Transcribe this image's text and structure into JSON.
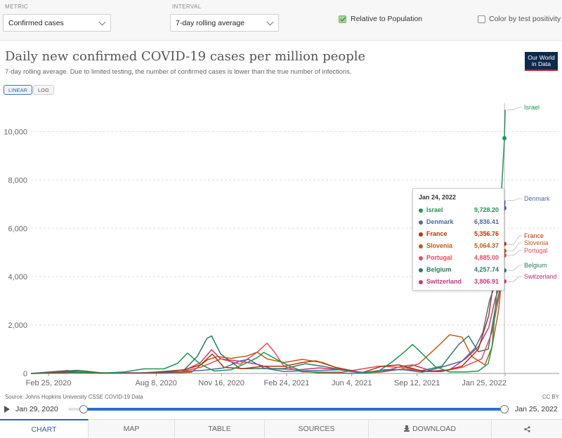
{
  "controls": {
    "metric_label": "METRIC",
    "metric_value": "Confirmed cases",
    "interval_label": "INTERVAL",
    "interval_value": "7-day rolling average",
    "relative_label": "Relative to Population",
    "relative_checked": true,
    "color_test_label": "Color by test positivity",
    "color_test_checked": false
  },
  "header": {
    "title": "Daily new confirmed COVID-19 cases per million people",
    "subtitle": "7-day rolling average. Due to limited testing, the number of confirmed cases is lower than the true number of infections.",
    "logo_line1": "Our World",
    "logo_line2": "in Data"
  },
  "scale_buttons": {
    "linear": "LINEAR",
    "log": "LOG",
    "active": "linear"
  },
  "chart_data": {
    "type": "line",
    "title": "Daily new confirmed COVID-19 cases per million people",
    "subtitle": "7-day rolling average. Due to limited testing, the number of confirmed cases is lower than the true number of infections.",
    "x_start": "2020-01-29",
    "x_end": "2022-01-25",
    "x_tick_labels": [
      "Feb 25, 2020",
      "Aug 8, 2020",
      "Nov 16, 2020",
      "Feb 24, 2021",
      "Jun 4, 2021",
      "Sep 12, 2021",
      "Jan 25, 2022"
    ],
    "x_tick_dates": [
      "2020-02-25",
      "2020-08-08",
      "2020-11-16",
      "2021-02-24",
      "2021-06-04",
      "2021-09-12",
      "2022-01-25"
    ],
    "y_ticks": [
      0,
      2000,
      4000,
      6000,
      8000,
      10000
    ],
    "y_tick_labels": [
      "0",
      "2,000",
      "4,000",
      "6,000",
      "8,000",
      "10,000"
    ],
    "ylim": [
      0,
      11000
    ],
    "grid": "horizontal dashed",
    "series": [
      {
        "name": "Israel",
        "color": "#1a9850",
        "end_value": 10900,
        "points": [
          [
            "2020-01-29",
            0
          ],
          [
            "2020-03-25",
            10
          ],
          [
            "2020-04-05",
            60
          ],
          [
            "2020-05-15",
            5
          ],
          [
            "2020-06-20",
            60
          ],
          [
            "2020-07-20",
            190
          ],
          [
            "2020-08-20",
            190
          ],
          [
            "2020-09-10",
            420
          ],
          [
            "2020-09-25",
            840
          ],
          [
            "2020-10-15",
            380
          ],
          [
            "2020-11-05",
            100
          ],
          [
            "2020-12-01",
            150
          ],
          [
            "2020-12-20",
            380
          ],
          [
            "2021-01-10",
            650
          ],
          [
            "2021-01-20",
            870
          ],
          [
            "2021-02-10",
            560
          ],
          [
            "2021-03-01",
            300
          ],
          [
            "2021-03-20",
            100
          ],
          [
            "2021-04-15",
            20
          ],
          [
            "2021-06-01",
            2
          ],
          [
            "2021-06-25",
            10
          ],
          [
            "2021-07-15",
            90
          ],
          [
            "2021-08-05",
            480
          ],
          [
            "2021-08-25",
            920
          ],
          [
            "2021-09-05",
            1200
          ],
          [
            "2021-09-15",
            950
          ],
          [
            "2021-10-10",
            280
          ],
          [
            "2021-11-01",
            60
          ],
          [
            "2021-11-25",
            60
          ],
          [
            "2021-12-15",
            100
          ],
          [
            "2021-12-30",
            400
          ],
          [
            "2022-01-05",
            1100
          ],
          [
            "2022-01-12",
            3300
          ],
          [
            "2022-01-18",
            6800
          ],
          [
            "2022-01-24",
            9728.2
          ],
          [
            "2022-01-25",
            10900
          ]
        ]
      },
      {
        "name": "Denmark",
        "color": "#4c6a9c",
        "end_value": 7150,
        "points": [
          [
            "2020-01-29",
            0
          ],
          [
            "2020-03-20",
            20
          ],
          [
            "2020-04-10",
            40
          ],
          [
            "2020-05-01",
            20
          ],
          [
            "2020-06-15",
            5
          ],
          [
            "2020-08-15",
            20
          ],
          [
            "2020-09-20",
            80
          ],
          [
            "2020-10-20",
            130
          ],
          [
            "2020-11-20",
            230
          ],
          [
            "2020-12-15",
            520
          ],
          [
            "2020-12-28",
            580
          ],
          [
            "2021-01-20",
            220
          ],
          [
            "2021-02-20",
            80
          ],
          [
            "2021-03-20",
            110
          ],
          [
            "2021-04-20",
            130
          ],
          [
            "2021-05-15",
            150
          ],
          [
            "2021-06-20",
            20
          ],
          [
            "2021-07-20",
            120
          ],
          [
            "2021-08-20",
            160
          ],
          [
            "2021-09-20",
            50
          ],
          [
            "2021-10-20",
            260
          ],
          [
            "2021-11-20",
            510
          ],
          [
            "2021-12-10",
            1050
          ],
          [
            "2021-12-22",
            1700
          ],
          [
            "2022-01-01",
            3000
          ],
          [
            "2022-01-10",
            3700
          ],
          [
            "2022-01-18",
            5200
          ],
          [
            "2022-01-24",
            6836.41
          ],
          [
            "2022-01-25",
            7150
          ]
        ]
      },
      {
        "name": "France",
        "color": "#b13507",
        "end_value": 5330,
        "points": [
          [
            "2020-01-29",
            0
          ],
          [
            "2020-03-25",
            60
          ],
          [
            "2020-04-05",
            80
          ],
          [
            "2020-05-15",
            15
          ],
          [
            "2020-07-15",
            15
          ],
          [
            "2020-08-25",
            70
          ],
          [
            "2020-09-20",
            150
          ],
          [
            "2020-10-15",
            350
          ],
          [
            "2020-11-02",
            800
          ],
          [
            "2020-11-20",
            250
          ],
          [
            "2020-12-20",
            200
          ],
          [
            "2021-01-20",
            300
          ],
          [
            "2021-02-20",
            300
          ],
          [
            "2021-03-20",
            450
          ],
          [
            "2021-04-10",
            520
          ],
          [
            "2021-05-10",
            250
          ],
          [
            "2021-06-20",
            30
          ],
          [
            "2021-07-20",
            300
          ],
          [
            "2021-08-15",
            350
          ],
          [
            "2021-09-20",
            100
          ],
          [
            "2021-10-20",
            80
          ],
          [
            "2021-11-20",
            300
          ],
          [
            "2021-12-15",
            1000
          ],
          [
            "2021-12-31",
            2400
          ],
          [
            "2022-01-10",
            4300
          ],
          [
            "2022-01-18",
            5000
          ],
          [
            "2022-01-24",
            5356.76
          ],
          [
            "2022-01-25",
            5330
          ]
        ]
      },
      {
        "name": "Slovenia",
        "color": "#c15a17",
        "end_value": 5080,
        "points": [
          [
            "2020-01-29",
            0
          ],
          [
            "2020-03-25",
            30
          ],
          [
            "2020-05-15",
            2
          ],
          [
            "2020-08-15",
            10
          ],
          [
            "2020-10-01",
            50
          ],
          [
            "2020-10-25",
            550
          ],
          [
            "2020-11-10",
            700
          ],
          [
            "2020-12-01",
            620
          ],
          [
            "2020-12-25",
            720
          ],
          [
            "2021-01-10",
            880
          ],
          [
            "2021-01-25",
            600
          ],
          [
            "2021-02-20",
            450
          ],
          [
            "2021-03-20",
            580
          ],
          [
            "2021-04-20",
            450
          ],
          [
            "2021-05-20",
            150
          ],
          [
            "2021-06-20",
            20
          ],
          [
            "2021-07-20",
            60
          ],
          [
            "2021-08-20",
            180
          ],
          [
            "2021-09-15",
            400
          ],
          [
            "2021-10-15",
            1150
          ],
          [
            "2021-11-01",
            1600
          ],
          [
            "2021-11-20",
            1500
          ],
          [
            "2021-12-05",
            700
          ],
          [
            "2021-12-25",
            350
          ],
          [
            "2022-01-05",
            1100
          ],
          [
            "2022-01-15",
            2600
          ],
          [
            "2022-01-24",
            5064.37
          ],
          [
            "2022-01-25",
            5080
          ]
        ]
      },
      {
        "name": "Portugal",
        "color": "#e44a5a",
        "end_value": 4880,
        "points": [
          [
            "2020-01-29",
            0
          ],
          [
            "2020-03-30",
            60
          ],
          [
            "2020-05-15",
            30
          ],
          [
            "2020-07-15",
            30
          ],
          [
            "2020-09-15",
            70
          ],
          [
            "2020-10-15",
            250
          ],
          [
            "2020-11-15",
            600
          ],
          [
            "2020-12-15",
            380
          ],
          [
            "2021-01-10",
            880
          ],
          [
            "2021-01-25",
            1250
          ],
          [
            "2021-02-05",
            900
          ],
          [
            "2021-02-20",
            300
          ],
          [
            "2021-03-20",
            60
          ],
          [
            "2021-05-20",
            50
          ],
          [
            "2021-07-15",
            300
          ],
          [
            "2021-08-20",
            250
          ],
          [
            "2021-09-20",
            80
          ],
          [
            "2021-10-20",
            80
          ],
          [
            "2021-11-20",
            250
          ],
          [
            "2021-12-20",
            600
          ],
          [
            "2022-01-05",
            1700
          ],
          [
            "2022-01-15",
            3100
          ],
          [
            "2022-01-24",
            4885
          ],
          [
            "2022-01-25",
            4880
          ]
        ]
      },
      {
        "name": "Belgium",
        "color": "#2a7c61",
        "end_value": 4260,
        "points": [
          [
            "2020-01-29",
            0
          ],
          [
            "2020-04-10",
            130
          ],
          [
            "2020-05-15",
            30
          ],
          [
            "2020-07-15",
            20
          ],
          [
            "2020-08-10",
            60
          ],
          [
            "2020-09-20",
            150
          ],
          [
            "2020-10-10",
            700
          ],
          [
            "2020-10-25",
            1450
          ],
          [
            "2020-11-01",
            1550
          ],
          [
            "2020-11-15",
            800
          ],
          [
            "2020-12-15",
            200
          ],
          [
            "2021-01-20",
            200
          ],
          [
            "2021-02-20",
            200
          ],
          [
            "2021-03-25",
            400
          ],
          [
            "2021-04-20",
            300
          ],
          [
            "2021-06-01",
            80
          ],
          [
            "2021-06-25",
            40
          ],
          [
            "2021-07-25",
            150
          ],
          [
            "2021-08-25",
            150
          ],
          [
            "2021-09-20",
            120
          ],
          [
            "2021-10-20",
            300
          ],
          [
            "2021-11-15",
            1200
          ],
          [
            "2021-11-30",
            1550
          ],
          [
            "2021-12-15",
            900
          ],
          [
            "2021-12-30",
            1000
          ],
          [
            "2022-01-10",
            2700
          ],
          [
            "2022-01-24",
            4257.74
          ],
          [
            "2022-01-25",
            4260
          ]
        ]
      },
      {
        "name": "Switzerland",
        "color": "#c7377d",
        "end_value": 3800,
        "points": [
          [
            "2020-01-29",
            0
          ],
          [
            "2020-03-25",
            120
          ],
          [
            "2020-04-20",
            40
          ],
          [
            "2020-05-15",
            5
          ],
          [
            "2020-07-15",
            10
          ],
          [
            "2020-09-15",
            50
          ],
          [
            "2020-10-15",
            450
          ],
          [
            "2020-11-01",
            980
          ],
          [
            "2020-11-15",
            600
          ],
          [
            "2020-12-15",
            500
          ],
          [
            "2021-01-10",
            380
          ],
          [
            "2021-02-01",
            200
          ],
          [
            "2021-03-15",
            150
          ],
          [
            "2021-04-15",
            230
          ],
          [
            "2021-05-20",
            150
          ],
          [
            "2021-06-20",
            15
          ],
          [
            "2021-07-20",
            60
          ],
          [
            "2021-08-20",
            300
          ],
          [
            "2021-09-05",
            350
          ],
          [
            "2021-10-05",
            100
          ],
          [
            "2021-11-01",
            150
          ],
          [
            "2021-11-25",
            600
          ],
          [
            "2021-12-15",
            1100
          ],
          [
            "2021-12-31",
            1900
          ],
          [
            "2022-01-10",
            3100
          ],
          [
            "2022-01-18",
            3700
          ],
          [
            "2022-01-24",
            3806.91
          ],
          [
            "2022-01-25",
            3800
          ]
        ]
      }
    ]
  },
  "tooltip": {
    "date": "Jan 24, 2022",
    "rows": [
      {
        "name": "Israel",
        "value": "9,728.20",
        "color": "#1a9850"
      },
      {
        "name": "Denmark",
        "value": "6,836.41",
        "color": "#4c6a9c"
      },
      {
        "name": "France",
        "value": "5,356.76",
        "color": "#b13507"
      },
      {
        "name": "Slovenia",
        "value": "5,064.37",
        "color": "#c15a17"
      },
      {
        "name": "Portugal",
        "value": "4,885.00",
        "color": "#e44a5a"
      },
      {
        "name": "Belgium",
        "value": "4,257.74",
        "color": "#2a7c61"
      },
      {
        "name": "Switzerland",
        "value": "3,806.91",
        "color": "#c7377d"
      }
    ]
  },
  "source": "Source: Johns Hopkins University CSSE COVID-19 Data",
  "license": "CC BY",
  "timeline": {
    "start": "Jan 29, 2020",
    "end": "Jan 25, 2022"
  },
  "tabs": [
    "CHART",
    "MAP",
    "TABLE",
    "SOURCES",
    "DOWNLOAD"
  ],
  "share_icon": "share-icon",
  "download_icon": "download-icon"
}
